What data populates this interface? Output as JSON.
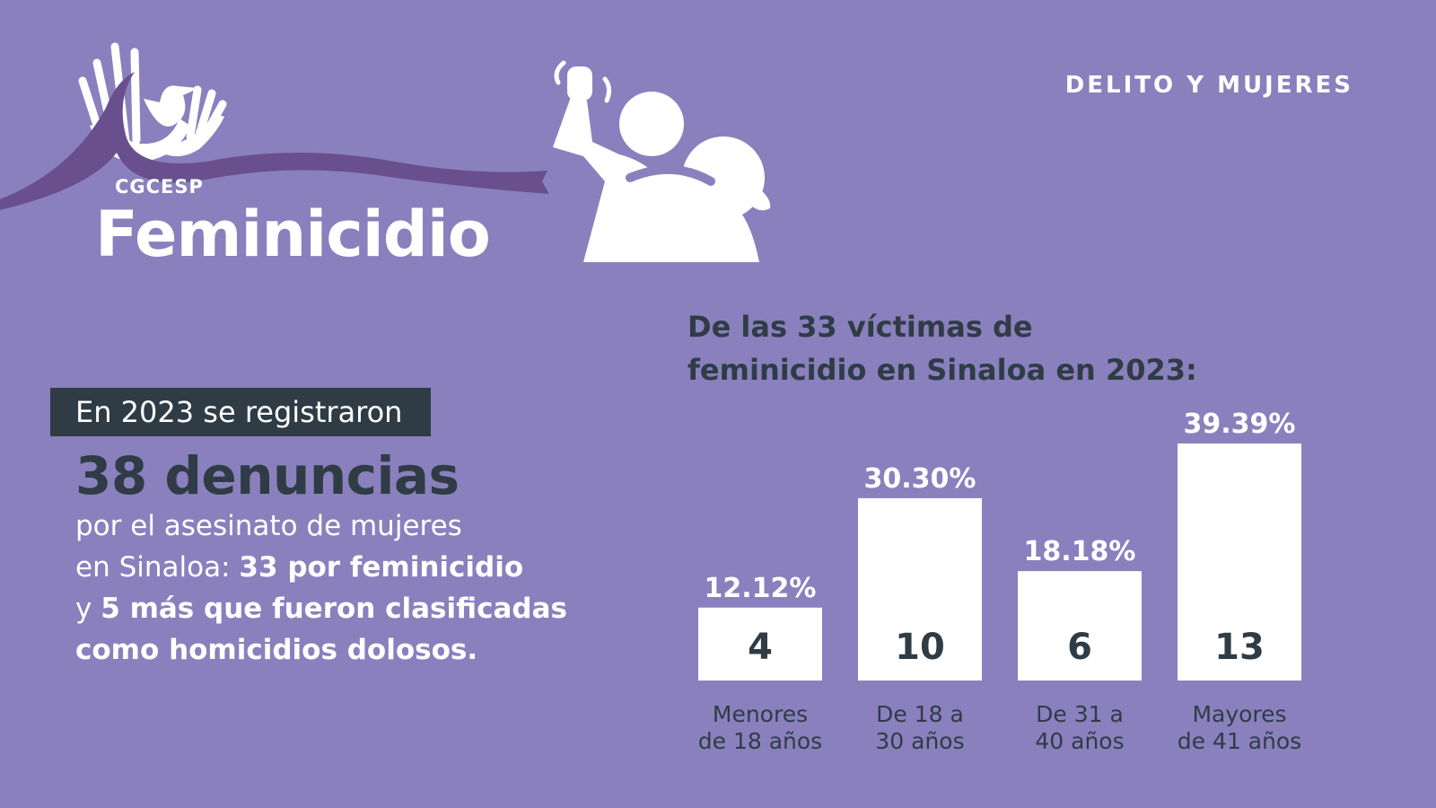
{
  "header": {
    "section_label": "DELITO Y MUJERES"
  },
  "brand": {
    "org": "CGCESP",
    "title": "Feminicidio"
  },
  "intro": {
    "box_text": "En 2023 se registraron",
    "headline": "38 denuncias",
    "line1": "por el asesinato de mujeres",
    "line2_regular": "en Sinaloa: ",
    "line2_bold": "33 por feminicidio",
    "line3_regular": "y ",
    "line3_bold": "5 más que fueron clasificadas",
    "line4_bold": "como homicidios dolosos."
  },
  "colors": {
    "background": "#8a80bd",
    "dark": "#2f3c46",
    "ribbon": "#6a4f8e",
    "bar": "#ffffff"
  },
  "icons": [
    "ribbon-hands-dove-logo",
    "violence-figures-icon"
  ],
  "chart_data": {
    "type": "bar",
    "title_line1": "De las 33 víctimas de",
    "title_line2": "feminicidio en Sinaloa en 2023:",
    "categories": [
      [
        "Menores",
        "de 18 años"
      ],
      [
        "De 18 a",
        "30 años"
      ],
      [
        "De 31 a",
        "40 años"
      ],
      [
        "Mayores",
        "de 41 años"
      ]
    ],
    "values": [
      4,
      10,
      6,
      13
    ],
    "percent_labels": [
      "12.12%",
      "30.30%",
      "18.18%",
      "39.39%"
    ],
    "ylim": [
      0,
      13
    ],
    "grid": false,
    "legend": "none"
  }
}
